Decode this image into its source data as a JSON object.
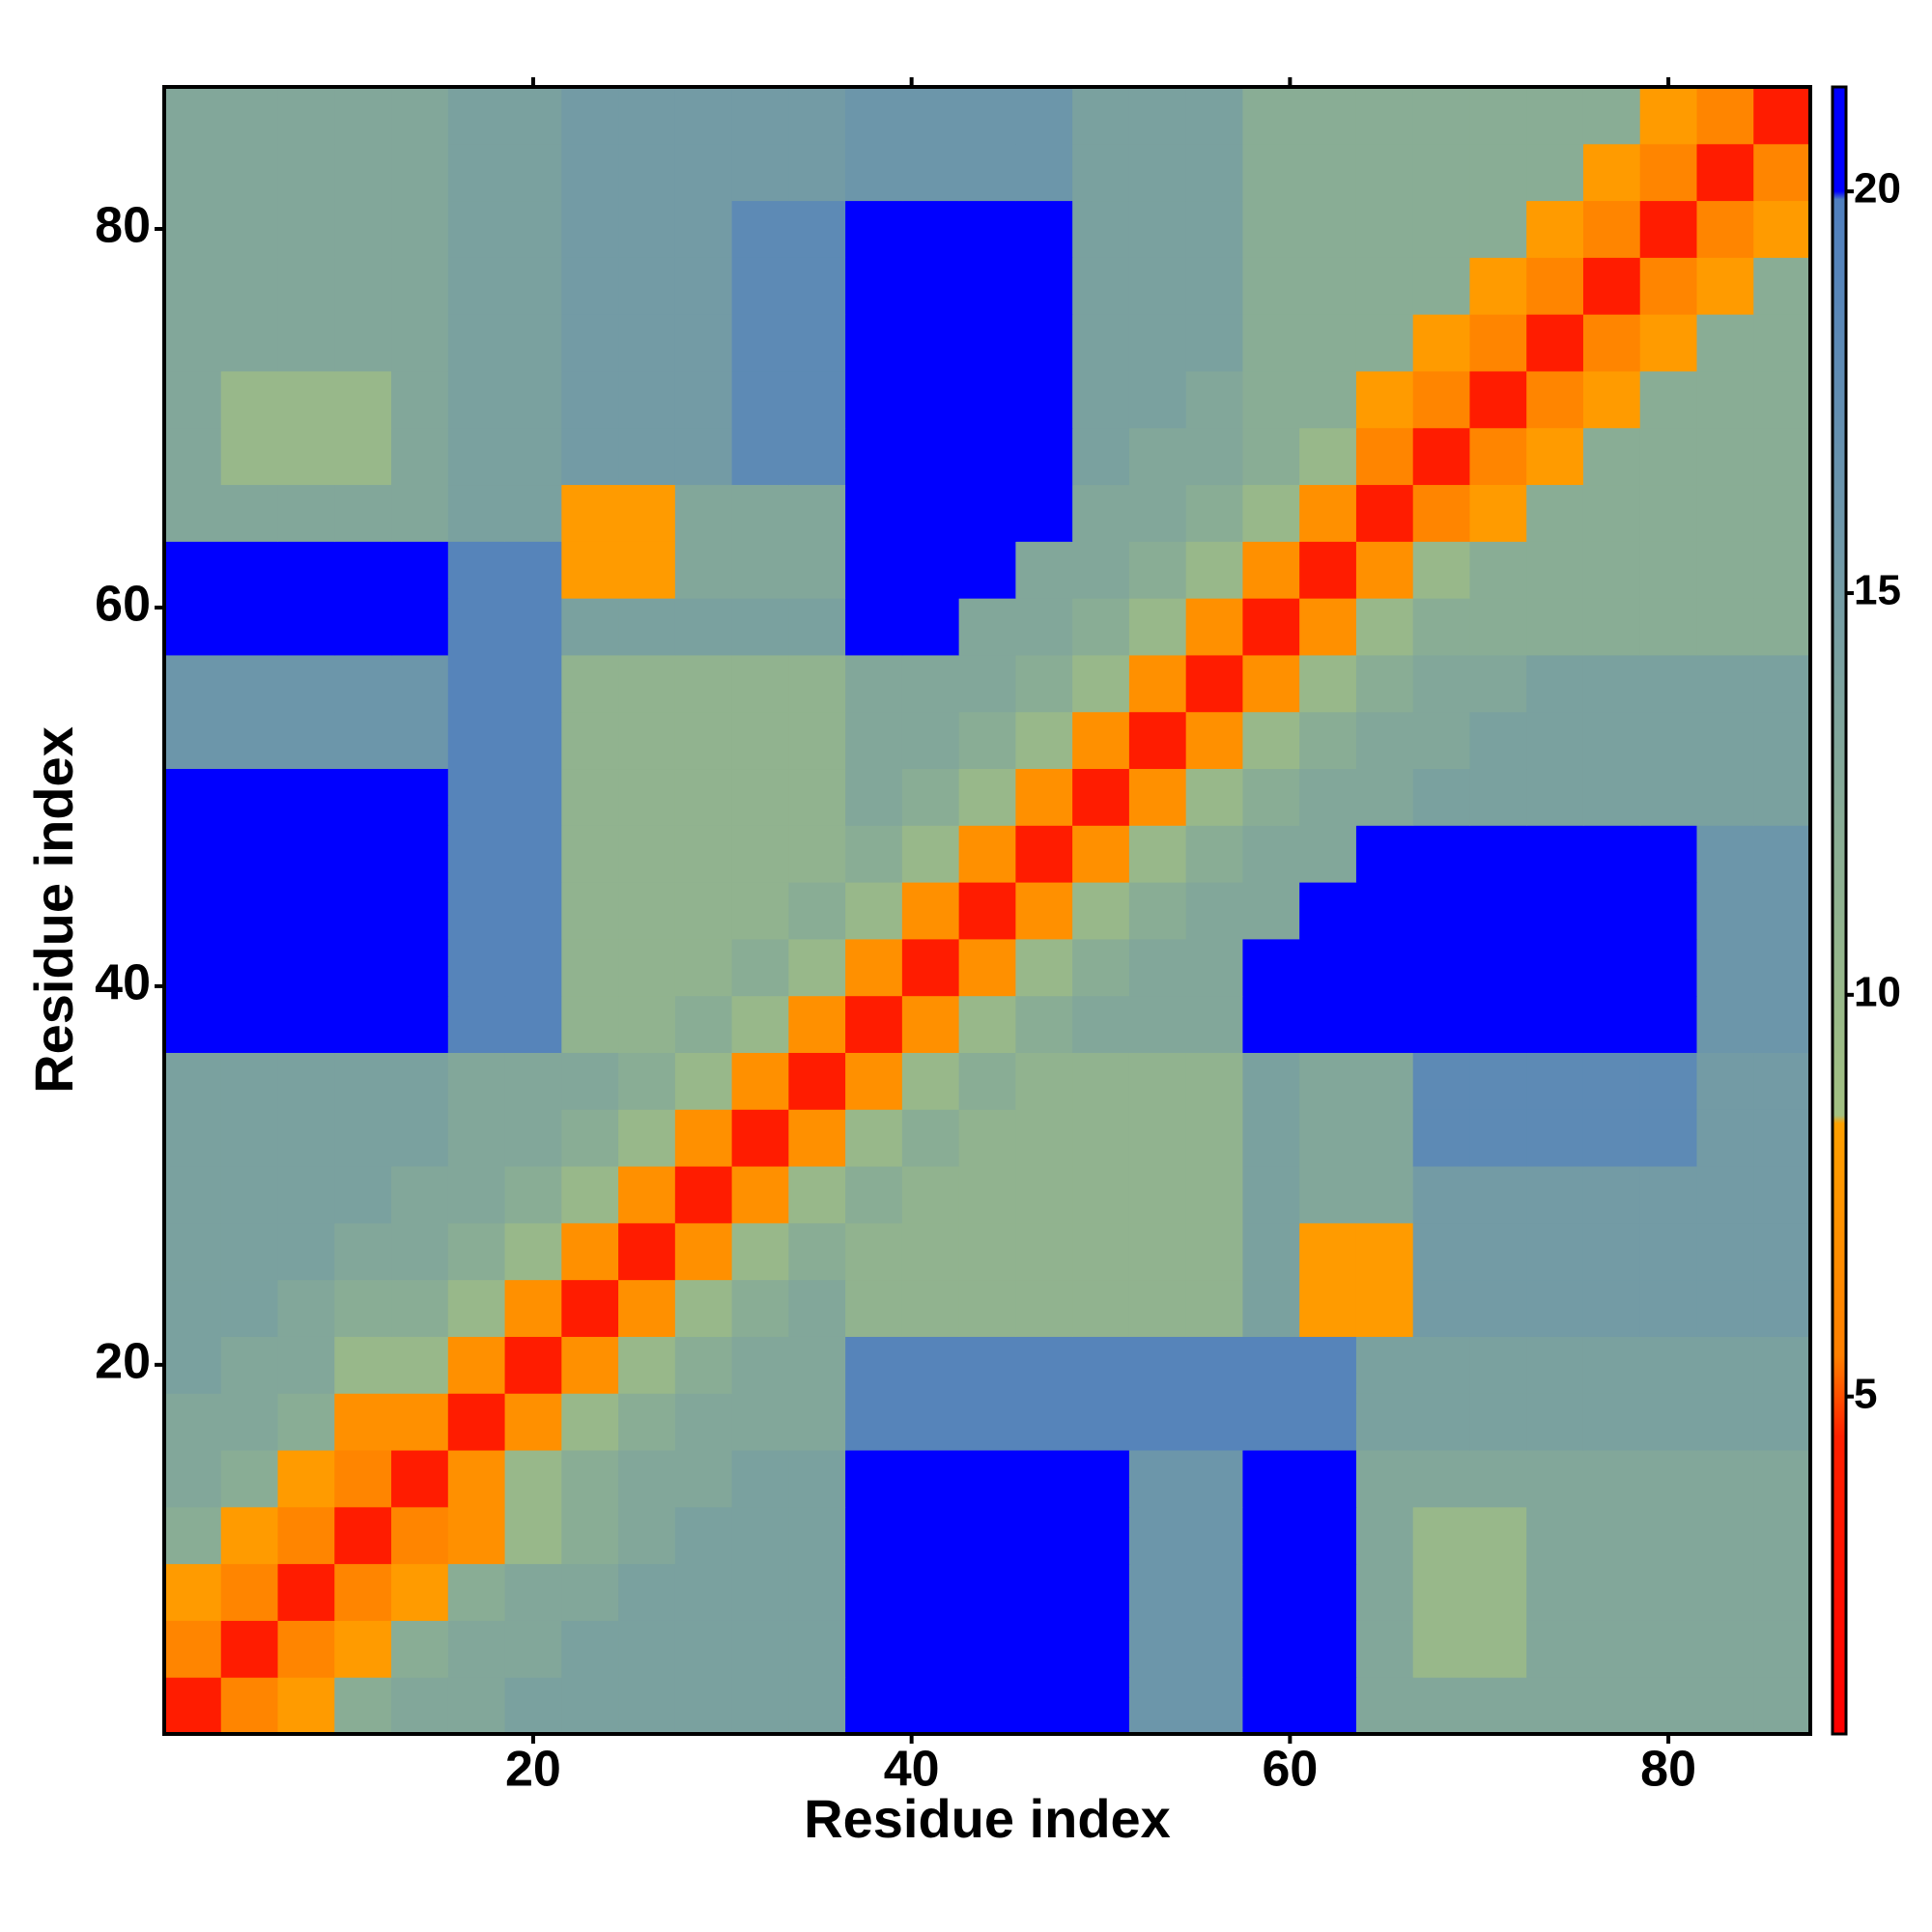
{
  "chart_data": {
    "type": "heatmap",
    "xlabel": "Residue index",
    "ylabel": "Residue index",
    "xbins": [
      0.5,
      3.5,
      6.5,
      9.5,
      12.5,
      15.5,
      18.5,
      21.5,
      24.5,
      27.5,
      30.5,
      33.5,
      36.5,
      39.5,
      42.5,
      45.5,
      48.5,
      51.5,
      54.5,
      57.5,
      60.5,
      63.5,
      66.5,
      69.5,
      72.5,
      75.5,
      78.5,
      81.5,
      84.5,
      87.5
    ],
    "ybins": [
      0.5,
      3.5,
      6.5,
      9.5,
      12.5,
      15.5,
      18.5,
      21.5,
      24.5,
      27.5,
      30.5,
      33.5,
      36.5,
      39.5,
      42.5,
      45.5,
      48.5,
      51.5,
      54.5,
      57.5,
      60.5,
      63.5,
      66.5,
      69.5,
      72.5,
      75.5,
      78.5,
      81.5,
      84.5,
      87.5
    ],
    "xlim": [
      0.5,
      87.5
    ],
    "ylim": [
      0.5,
      87.5
    ],
    "xticks": [
      20,
      40,
      60,
      80
    ],
    "yticks": [
      20,
      40,
      60,
      80
    ],
    "clim": [
      0.8,
      21.3
    ],
    "cticks": [
      5,
      10,
      15,
      20
    ],
    "colorscale": [
      [
        0.8,
        "#ff0000"
      ],
      [
        4.5,
        "#ff2000"
      ],
      [
        5.5,
        "#ff7f00"
      ],
      [
        8.4,
        "#ffa000"
      ],
      [
        8.5,
        "#a3c182"
      ],
      [
        19.9,
        "#4f7fbf"
      ],
      [
        20,
        "#0000ff"
      ],
      [
        21.3,
        "#0000ff"
      ]
    ],
    "z": [
      [
        4,
        6,
        8,
        12,
        13,
        13,
        14,
        14,
        14,
        14,
        14,
        14,
        20,
        20,
        20,
        20,
        20,
        16,
        16,
        20,
        20,
        13,
        13,
        13,
        13,
        13,
        13,
        13,
        13
      ],
      [
        6,
        4,
        6,
        8,
        12,
        13,
        13,
        14,
        14,
        14,
        14,
        14,
        20,
        20,
        20,
        20,
        20,
        16,
        16,
        20,
        20,
        13,
        10,
        10,
        13,
        13,
        13,
        13,
        13
      ],
      [
        8,
        6,
        4,
        6,
        8,
        12,
        13,
        13,
        14,
        14,
        14,
        14,
        20,
        20,
        20,
        20,
        20,
        16,
        16,
        20,
        20,
        13,
        10,
        10,
        13,
        13,
        13,
        13,
        13
      ],
      [
        12,
        8,
        6,
        4,
        6,
        7,
        10,
        12,
        13,
        14,
        14,
        14,
        20,
        20,
        20,
        20,
        20,
        16,
        16,
        20,
        20,
        13,
        10,
        10,
        13,
        13,
        13,
        13,
        13
      ],
      [
        13,
        12,
        8,
        6,
        4,
        7,
        10,
        12,
        13,
        13,
        14,
        14,
        20,
        20,
        20,
        20,
        20,
        16,
        16,
        20,
        20,
        13,
        13,
        13,
        13,
        13,
        13,
        13,
        13
      ],
      [
        13,
        13,
        12,
        7,
        7,
        4,
        7,
        10,
        12,
        13,
        13,
        13,
        19,
        19,
        19,
        19,
        19,
        19,
        19,
        19,
        19,
        14,
        14,
        14,
        14,
        14,
        14,
        14,
        14
      ],
      [
        14,
        13,
        13,
        10,
        10,
        7,
        4,
        7,
        10,
        12,
        13,
        13,
        19,
        19,
        19,
        19,
        19,
        19,
        19,
        19,
        19,
        14,
        14,
        14,
        14,
        14,
        14,
        14,
        14
      ],
      [
        14,
        14,
        13,
        12,
        12,
        10,
        7,
        4,
        7,
        10,
        12,
        13,
        11,
        11,
        11,
        11,
        11,
        11,
        11,
        14,
        8,
        8,
        15,
        15,
        15,
        15,
        15,
        15,
        15
      ],
      [
        14,
        14,
        14,
        13,
        13,
        12,
        10,
        7,
        4,
        7,
        10,
        12,
        11,
        11,
        11,
        11,
        11,
        11,
        11,
        14,
        8,
        8,
        15,
        15,
        15,
        15,
        15,
        15,
        15
      ],
      [
        14,
        14,
        14,
        14,
        13,
        13,
        12,
        10,
        7,
        4,
        7,
        10,
        12,
        11,
        11,
        11,
        11,
        11,
        11,
        14,
        13,
        13,
        15,
        15,
        15,
        15,
        15,
        15,
        15
      ],
      [
        14,
        14,
        14,
        14,
        14,
        13,
        13,
        12,
        10,
        7,
        4,
        7,
        10,
        12,
        11,
        11,
        11,
        11,
        11,
        14,
        13,
        13,
        18,
        18,
        18,
        18,
        18,
        15,
        15
      ],
      [
        14,
        14,
        14,
        14,
        14,
        13,
        13,
        13,
        12,
        10,
        7,
        4,
        7,
        10,
        12,
        11,
        11,
        11,
        11,
        14,
        13,
        13,
        18,
        18,
        18,
        18,
        18,
        15,
        15
      ],
      [
        20,
        20,
        20,
        20,
        20,
        19,
        19,
        11,
        11,
        12,
        10,
        7,
        4,
        7,
        10,
        12,
        13,
        13,
        13,
        21,
        21,
        21,
        21,
        21,
        21,
        21,
        21,
        16,
        16
      ],
      [
        20,
        20,
        20,
        20,
        20,
        19,
        19,
        11,
        11,
        11,
        12,
        10,
        7,
        4,
        7,
        10,
        12,
        13,
        13,
        21,
        21,
        21,
        21,
        21,
        21,
        21,
        21,
        16,
        16
      ],
      [
        20,
        20,
        20,
        20,
        20,
        19,
        19,
        11,
        11,
        11,
        11,
        12,
        10,
        7,
        4,
        7,
        10,
        12,
        13,
        13,
        21,
        21,
        21,
        21,
        21,
        21,
        21,
        16,
        16
      ],
      [
        20,
        20,
        20,
        20,
        20,
        19,
        19,
        11,
        11,
        11,
        11,
        11,
        12,
        10,
        7,
        4,
        7,
        10,
        12,
        13,
        13,
        21,
        21,
        21,
        21,
        21,
        21,
        16,
        16
      ],
      [
        20,
        20,
        20,
        20,
        20,
        19,
        19,
        11,
        11,
        11,
        11,
        11,
        13,
        12,
        10,
        7,
        4,
        7,
        10,
        12,
        13,
        13,
        14,
        14,
        14,
        14,
        14,
        14,
        14
      ],
      [
        16,
        16,
        16,
        16,
        16,
        19,
        19,
        11,
        11,
        11,
        11,
        11,
        13,
        13,
        12,
        10,
        7,
        4,
        7,
        10,
        12,
        13,
        13,
        14,
        14,
        14,
        14,
        14,
        14
      ],
      [
        16,
        16,
        16,
        16,
        16,
        19,
        19,
        11,
        11,
        11,
        11,
        11,
        13,
        13,
        13,
        12,
        10,
        7,
        4,
        7,
        10,
        12,
        13,
        13,
        14,
        14,
        14,
        14,
        14
      ],
      [
        20,
        20,
        20,
        20,
        20,
        19,
        19,
        14,
        14,
        14,
        14,
        14,
        21,
        21,
        13,
        13,
        12,
        10,
        7,
        4,
        7,
        10,
        12,
        12,
        12,
        12,
        12,
        12,
        12
      ],
      [
        20,
        20,
        20,
        20,
        20,
        19,
        19,
        8,
        8,
        13,
        13,
        13,
        21,
        21,
        21,
        13,
        13,
        12,
        10,
        7,
        4,
        7,
        10,
        12,
        12,
        12,
        12,
        12,
        12
      ],
      [
        13,
        13,
        13,
        13,
        13,
        14,
        14,
        8,
        8,
        13,
        13,
        13,
        21,
        21,
        21,
        21,
        13,
        13,
        12,
        10,
        7,
        4,
        6,
        8,
        12,
        12,
        12,
        12,
        12
      ],
      [
        13,
        10,
        10,
        10,
        13,
        14,
        14,
        15,
        15,
        15,
        18,
        18,
        21,
        21,
        21,
        21,
        14,
        13,
        13,
        12,
        10,
        6,
        4,
        6,
        8,
        12,
        12,
        12,
        12
      ],
      [
        13,
        10,
        10,
        10,
        13,
        14,
        14,
        15,
        15,
        15,
        18,
        18,
        21,
        21,
        21,
        21,
        14,
        14,
        13,
        12,
        12,
        8,
        6,
        4,
        6,
        8,
        12,
        12,
        12
      ],
      [
        13,
        13,
        13,
        13,
        13,
        14,
        14,
        15,
        15,
        15,
        18,
        18,
        21,
        21,
        21,
        21,
        14,
        14,
        14,
        12,
        12,
        12,
        8,
        6,
        4,
        6,
        8,
        12,
        12
      ],
      [
        13,
        13,
        13,
        13,
        13,
        14,
        14,
        15,
        15,
        15,
        18,
        18,
        21,
        21,
        21,
        21,
        14,
        14,
        14,
        12,
        12,
        12,
        12,
        8,
        6,
        4,
        6,
        8,
        12
      ],
      [
        13,
        13,
        13,
        13,
        13,
        14,
        14,
        15,
        15,
        15,
        18,
        18,
        21,
        21,
        21,
        21,
        14,
        14,
        14,
        12,
        12,
        12,
        12,
        12,
        8,
        6,
        4,
        6,
        8
      ],
      [
        13,
        13,
        13,
        13,
        13,
        14,
        14,
        15,
        15,
        15,
        15,
        15,
        16,
        16,
        16,
        16,
        14,
        14,
        14,
        12,
        12,
        12,
        12,
        12,
        12,
        8,
        6,
        4,
        6
      ],
      [
        13,
        13,
        13,
        13,
        13,
        14,
        14,
        15,
        15,
        15,
        15,
        15,
        16,
        16,
        16,
        16,
        14,
        14,
        14,
        12,
        12,
        12,
        12,
        12,
        12,
        12,
        8,
        6,
        4
      ]
    ]
  }
}
